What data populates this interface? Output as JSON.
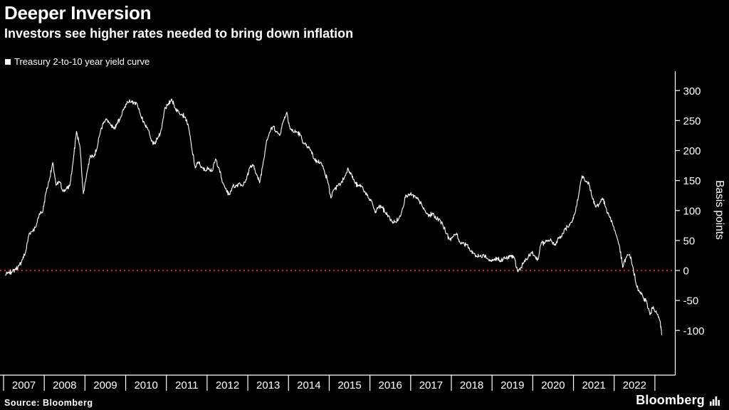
{
  "header": {
    "title": "Deeper Inversion",
    "subtitle": "Investors see higher rates needed to bring down inflation"
  },
  "legend": {
    "label": "Treasury 2-to-10 year yield curve"
  },
  "footer": {
    "source": "Source: Bloomberg",
    "brand": "Bloomberg"
  },
  "colors": {
    "background": "#000000",
    "line": "#ffffff",
    "zero_line": "#ff2015",
    "text": "#ffffff",
    "axis": "#ffffff"
  },
  "chart_data": {
    "type": "line",
    "title": "Deeper Inversion",
    "subtitle": "Investors see higher rates needed to bring down inflation",
    "ylabel": "Basis points",
    "unit": "basis points",
    "grid": false,
    "legend_position": "top-left",
    "yticks": [
      300,
      250,
      200,
      150,
      100,
      50,
      0,
      -50,
      -100
    ],
    "ylim": [
      -165,
      330
    ],
    "xticks": [
      2007,
      2008,
      2009,
      2010,
      2011,
      2012,
      2013,
      2014,
      2015,
      2016,
      2017,
      2018,
      2019,
      2020,
      2021,
      2022
    ],
    "x_domain": [
      2007,
      2023.5
    ],
    "zero_line": 0,
    "series": [
      {
        "name": "Treasury 2-to-10 year yield curve",
        "points": [
          [
            2007.04,
            -8
          ],
          [
            2007.13,
            -4
          ],
          [
            2007.21,
            -2
          ],
          [
            2007.29,
            2
          ],
          [
            2007.38,
            8
          ],
          [
            2007.46,
            18
          ],
          [
            2007.54,
            30
          ],
          [
            2007.63,
            62
          ],
          [
            2007.71,
            66
          ],
          [
            2007.79,
            72
          ],
          [
            2007.88,
            95
          ],
          [
            2007.96,
            97
          ],
          [
            2008.04,
            130
          ],
          [
            2008.13,
            152
          ],
          [
            2008.21,
            180
          ],
          [
            2008.29,
            142
          ],
          [
            2008.38,
            148
          ],
          [
            2008.46,
            132
          ],
          [
            2008.54,
            136
          ],
          [
            2008.63,
            142
          ],
          [
            2008.71,
            182
          ],
          [
            2008.79,
            232
          ],
          [
            2008.88,
            205
          ],
          [
            2008.96,
            128
          ],
          [
            2009.04,
            160
          ],
          [
            2009.13,
            192
          ],
          [
            2009.21,
            190
          ],
          [
            2009.29,
            202
          ],
          [
            2009.38,
            232
          ],
          [
            2009.46,
            248
          ],
          [
            2009.54,
            252
          ],
          [
            2009.63,
            242
          ],
          [
            2009.71,
            236
          ],
          [
            2009.79,
            246
          ],
          [
            2009.88,
            256
          ],
          [
            2009.96,
            270
          ],
          [
            2010.04,
            282
          ],
          [
            2010.13,
            280
          ],
          [
            2010.21,
            281
          ],
          [
            2010.29,
            276
          ],
          [
            2010.38,
            256
          ],
          [
            2010.46,
            246
          ],
          [
            2010.54,
            236
          ],
          [
            2010.63,
            216
          ],
          [
            2010.71,
            211
          ],
          [
            2010.79,
            221
          ],
          [
            2010.88,
            236
          ],
          [
            2010.96,
            271
          ],
          [
            2011.04,
            276
          ],
          [
            2011.13,
            286
          ],
          [
            2011.21,
            271
          ],
          [
            2011.29,
            266
          ],
          [
            2011.38,
            261
          ],
          [
            2011.46,
            256
          ],
          [
            2011.54,
            241
          ],
          [
            2011.63,
            201
          ],
          [
            2011.71,
            171
          ],
          [
            2011.79,
            181
          ],
          [
            2011.88,
            171
          ],
          [
            2011.96,
            166
          ],
          [
            2012.04,
            171
          ],
          [
            2012.13,
            166
          ],
          [
            2012.21,
            186
          ],
          [
            2012.29,
            171
          ],
          [
            2012.38,
            146
          ],
          [
            2012.46,
            136
          ],
          [
            2012.54,
            126
          ],
          [
            2012.63,
            141
          ],
          [
            2012.71,
            141
          ],
          [
            2012.79,
            146
          ],
          [
            2012.88,
            141
          ],
          [
            2012.96,
            151
          ],
          [
            2013.04,
            171
          ],
          [
            2013.13,
            176
          ],
          [
            2013.21,
            161
          ],
          [
            2013.29,
            146
          ],
          [
            2013.38,
            181
          ],
          [
            2013.46,
            216
          ],
          [
            2013.54,
            231
          ],
          [
            2013.63,
            241
          ],
          [
            2013.71,
            231
          ],
          [
            2013.79,
            226
          ],
          [
            2013.88,
            251
          ],
          [
            2013.96,
            264
          ],
          [
            2014.04,
            236
          ],
          [
            2014.13,
            231
          ],
          [
            2014.21,
            231
          ],
          [
            2014.29,
            226
          ],
          [
            2014.38,
            211
          ],
          [
            2014.46,
            206
          ],
          [
            2014.54,
            201
          ],
          [
            2014.63,
            186
          ],
          [
            2014.71,
            181
          ],
          [
            2014.79,
            181
          ],
          [
            2014.88,
            166
          ],
          [
            2014.96,
            150
          ],
          [
            2015.04,
            121
          ],
          [
            2015.13,
            136
          ],
          [
            2015.21,
            141
          ],
          [
            2015.29,
            146
          ],
          [
            2015.38,
            156
          ],
          [
            2015.46,
            171
          ],
          [
            2015.54,
            161
          ],
          [
            2015.63,
            146
          ],
          [
            2015.71,
            141
          ],
          [
            2015.79,
            141
          ],
          [
            2015.88,
            131
          ],
          [
            2015.96,
            121
          ],
          [
            2016.04,
            116
          ],
          [
            2016.13,
            96
          ],
          [
            2016.21,
            106
          ],
          [
            2016.29,
            106
          ],
          [
            2016.38,
            96
          ],
          [
            2016.46,
            91
          ],
          [
            2016.54,
            81
          ],
          [
            2016.63,
            81
          ],
          [
            2016.71,
            86
          ],
          [
            2016.79,
            101
          ],
          [
            2016.88,
            126
          ],
          [
            2016.96,
            126
          ],
          [
            2017.04,
            126
          ],
          [
            2017.13,
            121
          ],
          [
            2017.21,
            116
          ],
          [
            2017.29,
            106
          ],
          [
            2017.38,
            96
          ],
          [
            2017.46,
            91
          ],
          [
            2017.54,
            96
          ],
          [
            2017.63,
            86
          ],
          [
            2017.71,
            86
          ],
          [
            2017.79,
            76
          ],
          [
            2017.88,
            61
          ],
          [
            2017.96,
            52
          ],
          [
            2018.04,
            56
          ],
          [
            2018.13,
            62
          ],
          [
            2018.21,
            47
          ],
          [
            2018.29,
            46
          ],
          [
            2018.38,
            43
          ],
          [
            2018.46,
            33
          ],
          [
            2018.54,
            29
          ],
          [
            2018.63,
            23
          ],
          [
            2018.71,
            24
          ],
          [
            2018.79,
            27
          ],
          [
            2018.88,
            20
          ],
          [
            2018.96,
            16
          ],
          [
            2019.04,
            17
          ],
          [
            2019.13,
            20
          ],
          [
            2019.21,
            15
          ],
          [
            2019.29,
            22
          ],
          [
            2019.38,
            20
          ],
          [
            2019.46,
            25
          ],
          [
            2019.54,
            22
          ],
          [
            2019.63,
            -2
          ],
          [
            2019.71,
            5
          ],
          [
            2019.79,
            15
          ],
          [
            2019.88,
            20
          ],
          [
            2019.96,
            30
          ],
          [
            2020.04,
            25
          ],
          [
            2020.13,
            18
          ],
          [
            2020.21,
            47
          ],
          [
            2020.29,
            45
          ],
          [
            2020.38,
            50
          ],
          [
            2020.46,
            50
          ],
          [
            2020.54,
            42
          ],
          [
            2020.63,
            55
          ],
          [
            2020.71,
            56
          ],
          [
            2020.79,
            70
          ],
          [
            2020.88,
            72
          ],
          [
            2020.96,
            80
          ],
          [
            2021.04,
            96
          ],
          [
            2021.13,
            127
          ],
          [
            2021.21,
            158
          ],
          [
            2021.29,
            148
          ],
          [
            2021.38,
            146
          ],
          [
            2021.46,
            122
          ],
          [
            2021.54,
            106
          ],
          [
            2021.63,
            110
          ],
          [
            2021.71,
            121
          ],
          [
            2021.79,
            106
          ],
          [
            2021.88,
            91
          ],
          [
            2021.96,
            78
          ],
          [
            2022.04,
            61
          ],
          [
            2022.13,
            41
          ],
          [
            2022.21,
            5
          ],
          [
            2022.29,
            21
          ],
          [
            2022.38,
            27
          ],
          [
            2022.46,
            6
          ],
          [
            2022.54,
            -24
          ],
          [
            2022.63,
            -36
          ],
          [
            2022.71,
            -45
          ],
          [
            2022.79,
            -50
          ],
          [
            2022.88,
            -74
          ],
          [
            2022.96,
            -60
          ],
          [
            2023.04,
            -70
          ],
          [
            2023.13,
            -85
          ],
          [
            2023.17,
            -108
          ]
        ]
      }
    ]
  }
}
